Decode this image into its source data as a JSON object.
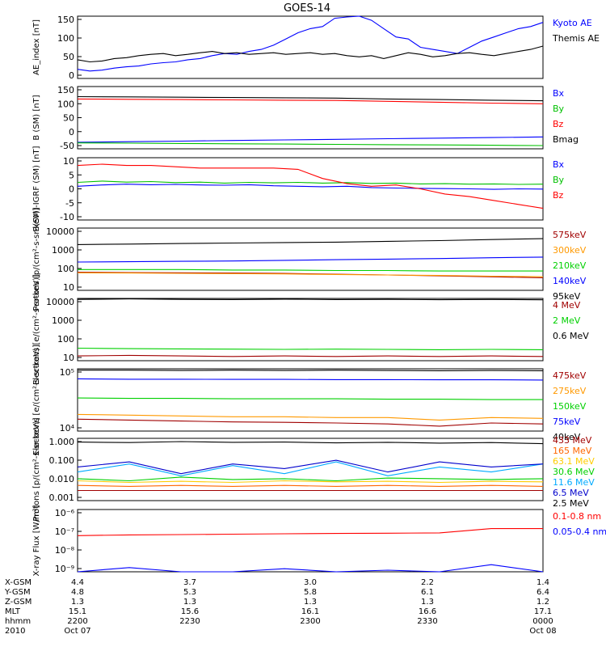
{
  "title": "GOES-14",
  "chart_data": [
    {
      "type": "line",
      "ylabel": "AE_index [nT]",
      "ylim": [
        0,
        150
      ],
      "yticks": [
        "150",
        "100",
        "50",
        "0"
      ],
      "series": [
        {
          "name": "Kyoto AE",
          "color": "#0000ff",
          "values": [
            22,
            18,
            20,
            25,
            28,
            30,
            35,
            38,
            40,
            45,
            48,
            55,
            60,
            58,
            65,
            70,
            80,
            95,
            110,
            120,
            125,
            145,
            148,
            150,
            140,
            120,
            100,
            95,
            75,
            70,
            65,
            60,
            75,
            90,
            100,
            110,
            120,
            125,
            135
          ]
        },
        {
          "name": "Themis AE",
          "color": "#000000",
          "values": [
            45,
            40,
            42,
            48,
            50,
            55,
            58,
            60,
            55,
            58,
            62,
            65,
            60,
            62,
            58,
            60,
            62,
            58,
            60,
            62,
            58,
            60,
            55,
            52,
            55,
            48,
            55,
            62,
            58,
            52,
            55,
            60,
            62,
            58,
            55,
            60,
            65,
            70,
            78
          ]
        }
      ]
    },
    {
      "type": "line",
      "ylabel": "B (SM) [nT]",
      "ylim": [
        -60,
        150
      ],
      "yticks": [
        "150",
        "100",
        "50",
        "0",
        "-50"
      ],
      "series": [
        {
          "name": "Bx",
          "color": "#0000ff",
          "values": [
            -38,
            -36,
            -34,
            -32,
            -30,
            -28,
            -26,
            -24,
            -22,
            -20
          ]
        },
        {
          "name": "By",
          "color": "#00c000",
          "values": [
            -40,
            -41,
            -42,
            -43,
            -44,
            -45,
            -46,
            -47,
            -48,
            -49
          ]
        },
        {
          "name": "Bz",
          "color": "#ff0000",
          "values": [
            108,
            107,
            106,
            105,
            104,
            103,
            100,
            97,
            94,
            92
          ]
        },
        {
          "name": "Bmag",
          "color": "#000000",
          "values": [
            116,
            115,
            114,
            113,
            112,
            111,
            108,
            106,
            104,
            102
          ]
        }
      ]
    },
    {
      "type": "line",
      "ylabel": "B(SM)-IGRF (SM) [nT]",
      "ylim": [
        -12,
        12
      ],
      "yticks": [
        "10",
        "5",
        "0",
        "-5",
        "-10"
      ],
      "series": [
        {
          "name": "Bx",
          "color": "#0000ff",
          "values": [
            1,
            1.5,
            1.8,
            1.6,
            1.7,
            1.5,
            1.4,
            1.6,
            1.2,
            1.0,
            0.8,
            1.0,
            0.5,
            0.3,
            0.2,
            0.1,
            0,
            -0.2,
            0,
            -0.1
          ]
        },
        {
          "name": "By",
          "color": "#00c000",
          "values": [
            2.5,
            3,
            2.6,
            2.8,
            2.4,
            2.6,
            2.2,
            2.5,
            2.3,
            2.5,
            2.2,
            2.4,
            2.1,
            2.2,
            1.9,
            2.0,
            1.8,
            1.9,
            1.7,
            1.8
          ]
        },
        {
          "name": "Bz",
          "color": "#ff0000",
          "values": [
            9,
            9.5,
            9,
            9,
            8.5,
            8,
            8,
            8,
            8,
            7.5,
            4,
            2,
            1,
            1.5,
            0,
            -2,
            -3,
            -4.5,
            -6,
            -7.5
          ]
        }
      ]
    },
    {
      "type": "line",
      "ylabel": "Protons [p/(cm²-s-sr-keV)]",
      "yscale": "log",
      "ylim": [
        10,
        10000
      ],
      "yticks": [
        "10000",
        "1000",
        "100",
        "10"
      ],
      "series": [
        {
          "name": "575keV",
          "color": "#a00000",
          "values": [
            75,
            72,
            70,
            68,
            65,
            60,
            55,
            50,
            45,
            40
          ]
        },
        {
          "name": "300keV",
          "color": "#ff9900",
          "values": [
            70,
            68,
            66,
            64,
            62,
            58,
            55,
            52,
            48,
            45
          ]
        },
        {
          "name": "210keV",
          "color": "#00d000",
          "values": [
            100,
            100,
            100,
            95,
            95,
            90,
            90,
            85,
            85,
            85
          ]
        },
        {
          "name": "140keV",
          "color": "#0000ff",
          "values": [
            230,
            240,
            250,
            260,
            280,
            300,
            320,
            340,
            370,
            400
          ]
        },
        {
          "name": "95keV",
          "color": "#000000",
          "values": [
            1600,
            1700,
            1800,
            1900,
            2000,
            2100,
            2300,
            2500,
            2800,
            3100
          ]
        }
      ]
    },
    {
      "type": "line",
      "ylabel": "Electrons [e/(cm²-s-sr-keV)]",
      "yscale": "log",
      "ylim": [
        10,
        10000
      ],
      "yticks": [
        "10000",
        "1000",
        "100",
        "10"
      ],
      "series": [
        {
          "name": "4 MeV",
          "color": "#a00000",
          "values": [
            17,
            18,
            17,
            16,
            17,
            16,
            17,
            16,
            17,
            16
          ]
        },
        {
          "name": "2 MeV",
          "color": "#00d000",
          "values": [
            40,
            38,
            37,
            36,
            35,
            36,
            35,
            34,
            35,
            34
          ]
        },
        {
          "name": "0.6 MeV",
          "color": "#000000",
          "values": [
            9000,
            9500,
            9000,
            8800,
            9200,
            8800,
            9000,
            8700,
            8900,
            8600
          ]
        }
      ]
    },
    {
      "type": "line",
      "ylabel": "Electrons [e/(cm²-s-sr-keV)]",
      "yscale": "log",
      "ylim": [
        10000,
        100000
      ],
      "yticks": [
        "10⁵",
        "10⁴"
      ],
      "series": [
        {
          "name": "475keV",
          "color": "#a00000",
          "values": [
            15500,
            15000,
            14500,
            14000,
            13800,
            13500,
            13000,
            12000,
            13500,
            13000
          ]
        },
        {
          "name": "275keV",
          "color": "#ff9900",
          "values": [
            18500,
            18000,
            17500,
            17000,
            17000,
            16500,
            16500,
            15000,
            16500,
            16000
          ]
        },
        {
          "name": "150keV",
          "color": "#00d000",
          "values": [
            34000,
            33500,
            33500,
            33000,
            33000,
            33000,
            32500,
            32500,
            32000,
            32000
          ]
        },
        {
          "name": "75keV",
          "color": "#0000ff",
          "values": [
            69000,
            68000,
            68000,
            67500,
            67500,
            67000,
            67000,
            66500,
            66500,
            66000
          ]
        },
        {
          "name": "40keV",
          "color": "#000000",
          "values": [
            95000,
            95000,
            94000,
            95000,
            94000,
            95000,
            94000,
            93000,
            94000,
            93000
          ]
        }
      ]
    },
    {
      "type": "line",
      "ylabel": "Protons [p/(cm²-s-sr-keV)]",
      "yscale": "log",
      "ylim": [
        0.001,
        5
      ],
      "yticks": [
        "1.000",
        "0.100",
        "0.010",
        "0.001"
      ],
      "series": [
        {
          "name": "433 MeV",
          "color": "#a00000",
          "values": [
            0.004,
            0.004,
            0.004,
            0.004,
            0.004,
            0.004,
            0.004,
            0.004,
            0.004,
            0.004
          ]
        },
        {
          "name": "165 MeV",
          "color": "#ff6600",
          "values": [
            0.008,
            0.007,
            0.008,
            0.007,
            0.008,
            0.007,
            0.008,
            0.007,
            0.008,
            0.007
          ]
        },
        {
          "name": "63.1 MeV",
          "color": "#ffcc00",
          "values": [
            0.015,
            0.012,
            0.014,
            0.012,
            0.015,
            0.013,
            0.014,
            0.012,
            0.014,
            0.013
          ]
        },
        {
          "name": "30.6 MeV",
          "color": "#00d000",
          "values": [
            0.02,
            0.015,
            0.025,
            0.018,
            0.02,
            0.015,
            0.022,
            0.02,
            0.018,
            0.02
          ]
        },
        {
          "name": "11.6 MeV",
          "color": "#00aaff",
          "values": [
            0.05,
            0.15,
            0.03,
            0.12,
            0.04,
            0.2,
            0.03,
            0.1,
            0.05,
            0.15
          ]
        },
        {
          "name": "6.5 MeV",
          "color": "#0000cc",
          "values": [
            0.1,
            0.2,
            0.04,
            0.15,
            0.08,
            0.25,
            0.05,
            0.2,
            0.1,
            0.15
          ]
        },
        {
          "name": "2.5 MeV",
          "color": "#000000",
          "values": [
            3.0,
            2.8,
            3.2,
            2.9,
            3.0,
            2.7,
            2.9,
            2.6,
            2.8,
            2.4
          ]
        }
      ]
    },
    {
      "type": "line",
      "ylabel": "X-ray Flux [W/m²]",
      "yscale": "log",
      "ylim": [
        1e-09,
        1e-06
      ],
      "yticks": [
        "10⁻⁶",
        "10⁻⁷",
        "10⁻⁸",
        "10⁻⁹"
      ],
      "series": [
        {
          "name": "0.1-0.8 nm",
          "color": "#ff0000",
          "values": [
            5.5e-08,
            6e-08,
            6.2e-08,
            6.5e-08,
            6.8e-08,
            7e-08,
            7.2e-08,
            7.5e-08,
            1.2e-07,
            1.2e-07
          ]
        },
        {
          "name": "0.05-0.4 nm",
          "color": "#0000ff",
          "values": [
            1e-09,
            1.6e-09,
            1e-09,
            1e-09,
            1.4e-09,
            1e-09,
            1.2e-09,
            1e-09,
            2.2e-09,
            1e-09
          ]
        }
      ]
    }
  ],
  "x_axis": {
    "rows": [
      {
        "label": "X-GSM",
        "values": [
          "4.4",
          "3.7",
          "3.0",
          "2.2",
          "1.4"
        ]
      },
      {
        "label": "Y-GSM",
        "values": [
          "4.8",
          "5.3",
          "5.8",
          "6.1",
          "6.4"
        ]
      },
      {
        "label": "Z-GSM",
        "values": [
          "1.3",
          "1.3",
          "1.3",
          "1.3",
          "1.2"
        ]
      },
      {
        "label": "MLT",
        "values": [
          "15.1",
          "15.6",
          "16.1",
          "16.6",
          "17.1"
        ]
      },
      {
        "label": "hhmm",
        "values": [
          "2200",
          "2230",
          "2300",
          "2330",
          "0000"
        ]
      },
      {
        "label": "2010",
        "values": [
          "Oct 07",
          "",
          "",
          "",
          "Oct 08"
        ]
      }
    ]
  }
}
